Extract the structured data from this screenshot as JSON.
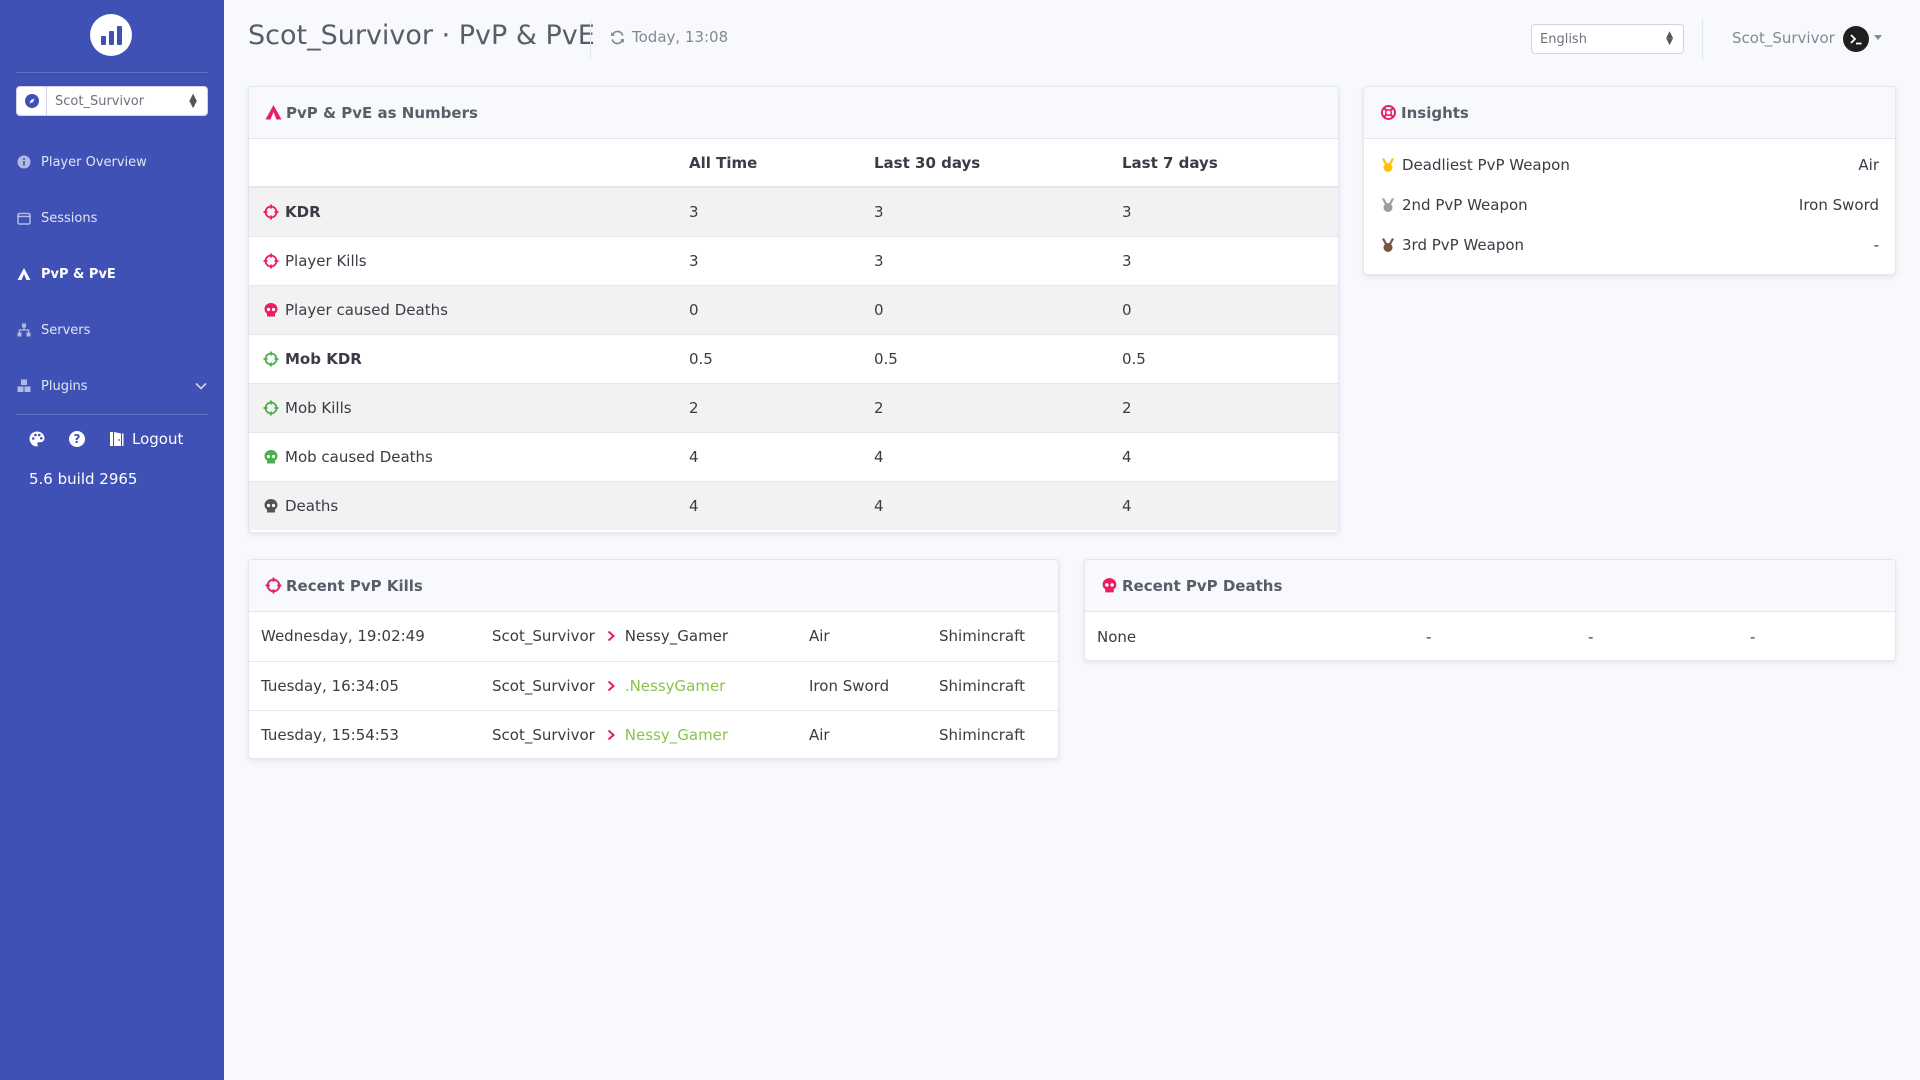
{
  "sidebar": {
    "player_select": "Scot_Survivor",
    "nav": [
      {
        "label": "Player Overview",
        "icon": "info-circle-icon"
      },
      {
        "label": "Sessions",
        "icon": "calendar-icon"
      },
      {
        "label": "PvP & PvE",
        "icon": "campground-icon"
      },
      {
        "label": "Servers",
        "icon": "network-icon"
      },
      {
        "label": "Plugins",
        "icon": "cubes-icon"
      }
    ],
    "logout_label": "Logout",
    "version": "5.6 build 2965"
  },
  "header": {
    "title": "Scot_Survivor · PvP & PvE",
    "refresh_time": "Today, 13:08",
    "language": "English",
    "user": "Scot_Survivor"
  },
  "numbers_card": {
    "title": "PvP & PvE as Numbers",
    "columns": [
      "",
      "All Time",
      "Last 30 days",
      "Last 7 days"
    ],
    "rows": [
      {
        "label": "KDR",
        "all": "3",
        "d30": "3",
        "d7": "3",
        "icon": "crosshairs-icon",
        "color": "#e91e63"
      },
      {
        "label": "Player Kills",
        "all": "3",
        "d30": "3",
        "d7": "3",
        "icon": "crosshairs-icon",
        "color": "#e91e63"
      },
      {
        "label": "Player caused Deaths",
        "all": "0",
        "d30": "0",
        "d7": "0",
        "icon": "skull-icon",
        "color": "#e91e63"
      },
      {
        "label": "Mob KDR",
        "all": "0.5",
        "d30": "0.5",
        "d7": "0.5",
        "icon": "crosshairs-icon",
        "color": "#4caf50"
      },
      {
        "label": "Mob Kills",
        "all": "2",
        "d30": "2",
        "d7": "2",
        "icon": "crosshairs-icon",
        "color": "#4caf50"
      },
      {
        "label": "Mob caused Deaths",
        "all": "4",
        "d30": "4",
        "d7": "4",
        "icon": "skull-icon",
        "color": "#4caf50"
      },
      {
        "label": "Deaths",
        "all": "4",
        "d30": "4",
        "d7": "4",
        "icon": "skull-icon",
        "color": "#555555"
      }
    ]
  },
  "insights": {
    "title": "Insights",
    "rows": [
      {
        "label": "Deadliest PvP Weapon",
        "value": "Air",
        "color": "#ffc107"
      },
      {
        "label": "2nd PvP Weapon",
        "value": "Iron Sword",
        "color": "#9e9e9e"
      },
      {
        "label": "3rd PvP Weapon",
        "value": "-",
        "color": "#795548"
      }
    ]
  },
  "recent_kills": {
    "title": "Recent PvP Kills",
    "rows": [
      {
        "date": "Wednesday, 19:02:49",
        "killer": "Scot_Survivor",
        "victim": "Nessy_Gamer",
        "weapon": "Air",
        "server": "Shimincraft",
        "victim_green": false
      },
      {
        "date": "Tuesday, 16:34:05",
        "killer": "Scot_Survivor",
        "victim": ".NessyGamer",
        "weapon": "Iron Sword",
        "server": "Shimincraft",
        "victim_green": true
      },
      {
        "date": "Tuesday, 15:54:53",
        "killer": "Scot_Survivor",
        "victim": "Nessy_Gamer",
        "weapon": "Air",
        "server": "Shimincraft",
        "victim_green": true
      }
    ]
  },
  "recent_deaths": {
    "title": "Recent PvP Deaths",
    "row": [
      "None",
      "-",
      "-",
      "-"
    ]
  },
  "colors": {
    "sidebar": "#3f51b5",
    "pvp": "#e91e63",
    "pve": "#4caf50",
    "link_green": "#8bc34a"
  }
}
